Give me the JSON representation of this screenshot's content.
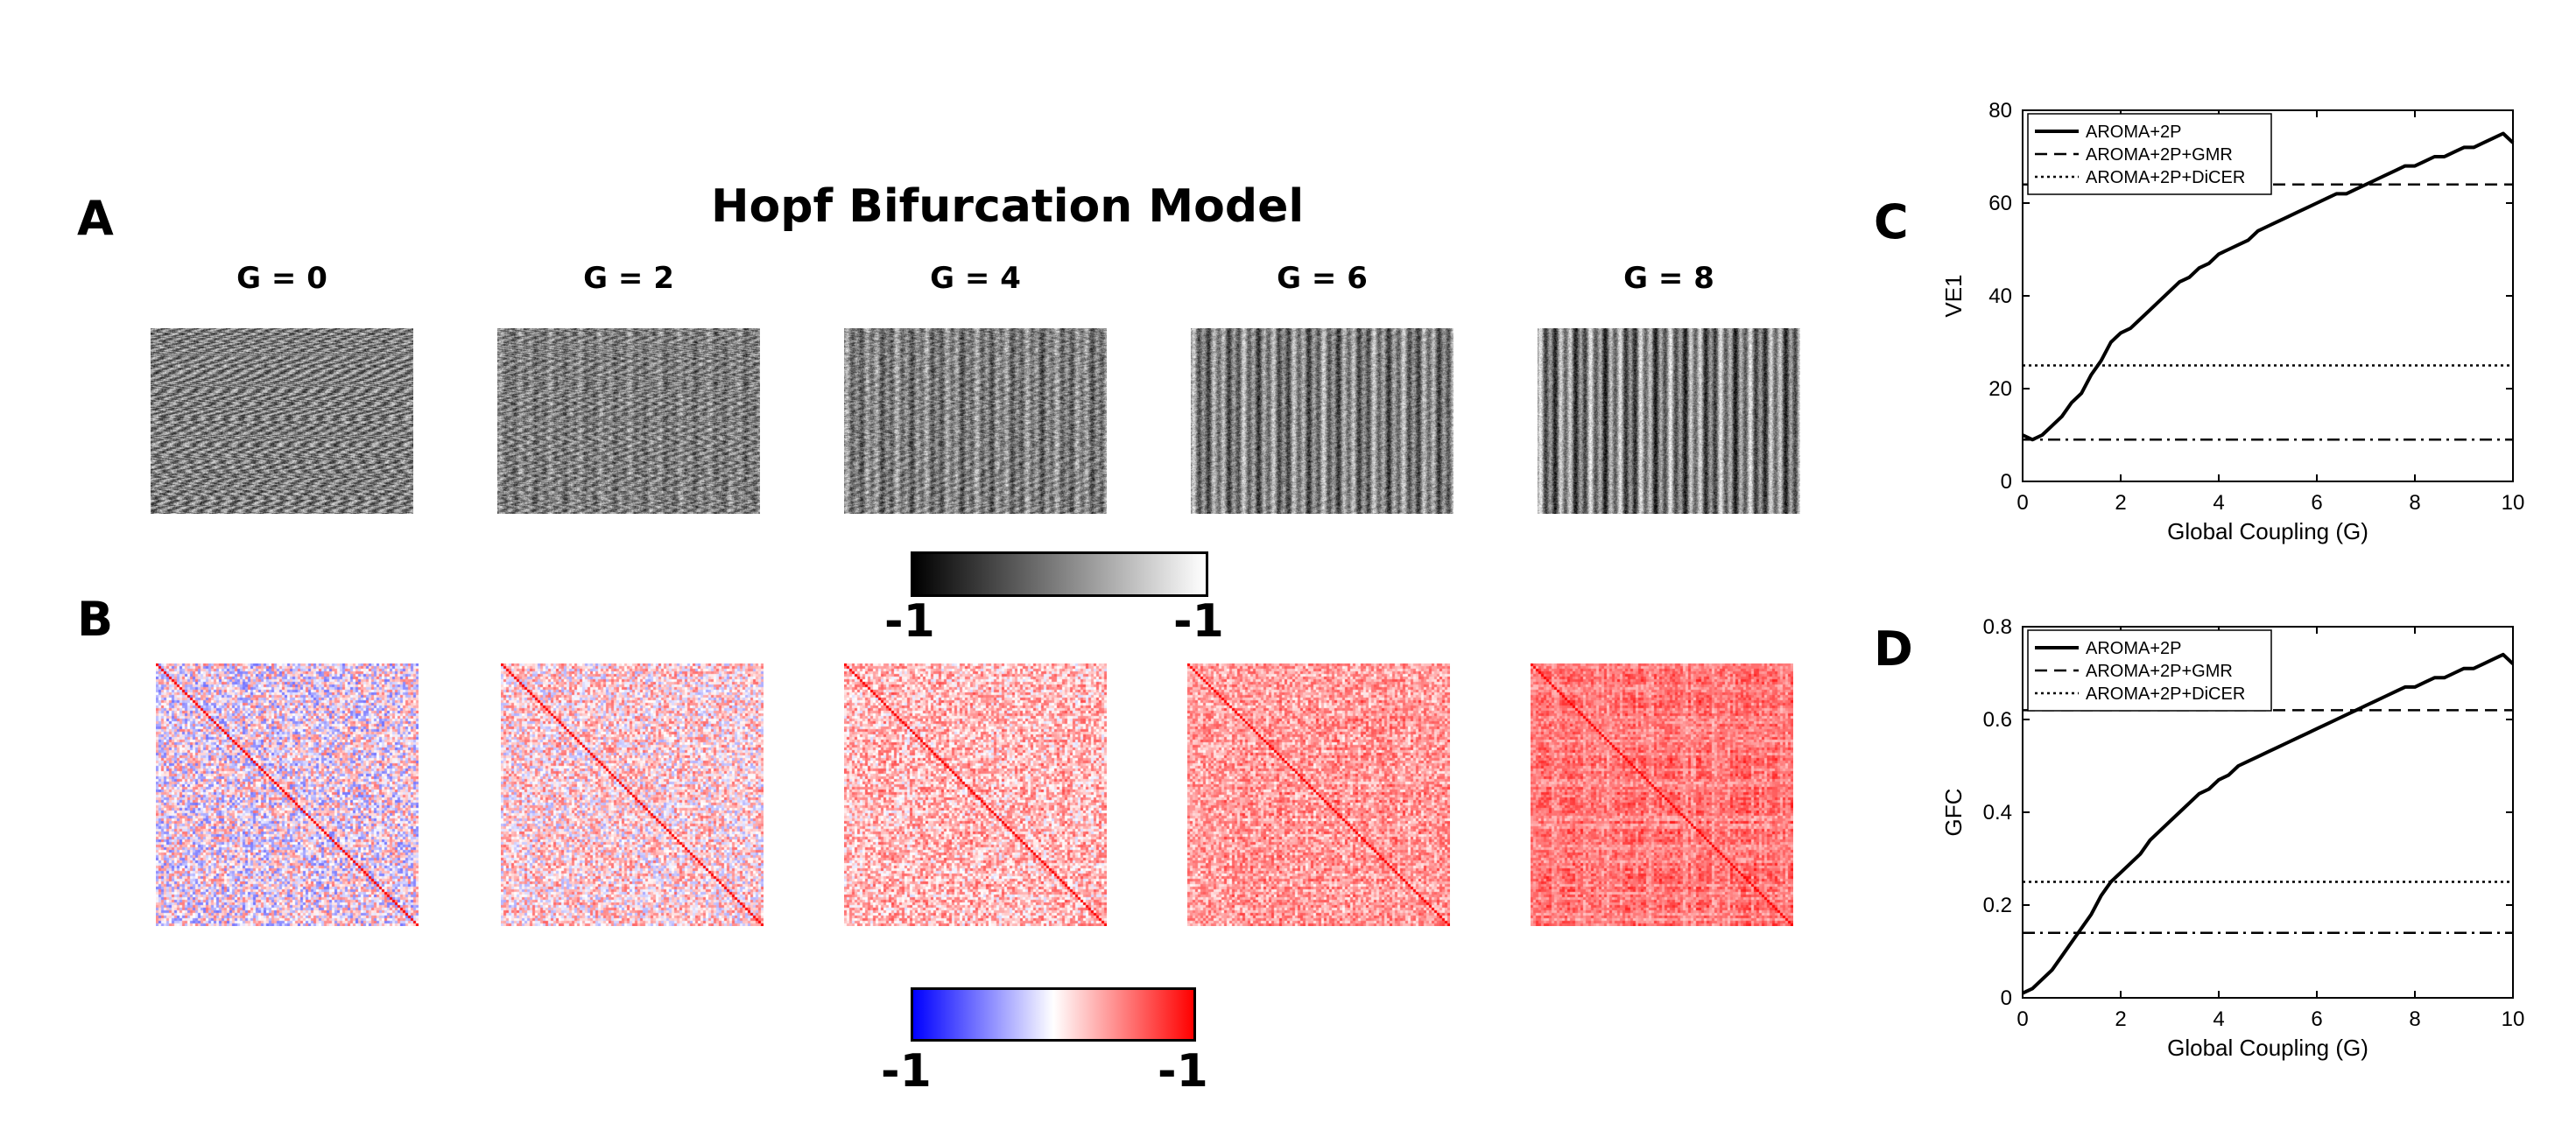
{
  "panel_letters": {
    "a": "A",
    "b": "B",
    "c": "C",
    "d": "D"
  },
  "title": "Hopf Bifurcation Model",
  "g_labels": [
    "G = 0",
    "G = 2",
    "G = 4",
    "G = 6",
    "G = 8"
  ],
  "colorbar_gray": {
    "min_label": "-1",
    "max_label": "-1",
    "colors": [
      "#000000",
      "#ffffff"
    ]
  },
  "colorbar_rwb": {
    "min_label": "-1",
    "max_label": "-1",
    "colors": [
      "#0000ff",
      "#ffffff",
      "#ff0000"
    ]
  },
  "chart_data": [
    {
      "type": "line",
      "panel": "C",
      "xlabel": "Global Coupling (G)",
      "ylabel": "VE1",
      "xlim": [
        0,
        10
      ],
      "ylim": [
        0,
        80
      ],
      "xticks": [
        0,
        2,
        4,
        6,
        8,
        10
      ],
      "yticks": [
        0,
        20,
        40,
        60,
        80
      ],
      "legend_position": "top-left",
      "series": [
        {
          "name": "AROMA+2P",
          "style": "solid",
          "x": [
            0,
            0.2,
            0.4,
            0.6,
            0.8,
            1.0,
            1.2,
            1.4,
            1.6,
            1.8,
            2.0,
            2.2,
            2.4,
            2.6,
            2.8,
            3.0,
            3.2,
            3.4,
            3.6,
            3.8,
            4.0,
            4.2,
            4.4,
            4.6,
            4.8,
            5.0,
            5.2,
            5.4,
            5.6,
            5.8,
            6.0,
            6.2,
            6.4,
            6.6,
            6.8,
            7.0,
            7.2,
            7.4,
            7.6,
            7.8,
            8.0,
            8.2,
            8.4,
            8.6,
            8.8,
            9.0,
            9.2,
            9.4,
            9.6,
            9.8,
            10.0
          ],
          "y": [
            10,
            9,
            10,
            12,
            14,
            17,
            19,
            23,
            26,
            30,
            32,
            33,
            35,
            37,
            39,
            41,
            43,
            44,
            46,
            47,
            49,
            50,
            51,
            52,
            54,
            55,
            56,
            57,
            58,
            59,
            60,
            61,
            62,
            62,
            63,
            64,
            65,
            66,
            67,
            68,
            68,
            69,
            70,
            70,
            71,
            72,
            72,
            73,
            74,
            75,
            73
          ]
        },
        {
          "name": "AROMA+2P+GMR",
          "style": "dashed",
          "x": [
            0,
            10
          ],
          "y": [
            64,
            64
          ]
        },
        {
          "name": "AROMA+2P+DiCER",
          "style": "dotted",
          "x": [
            0,
            10
          ],
          "y": [
            25,
            25
          ]
        },
        {
          "style": "dashdot",
          "x": [
            0,
            10
          ],
          "y": [
            9,
            9
          ]
        }
      ]
    },
    {
      "type": "line",
      "panel": "D",
      "xlabel": "Global Coupling (G)",
      "ylabel": "GFC",
      "xlim": [
        0,
        10
      ],
      "ylim": [
        0,
        0.8
      ],
      "xticks": [
        0,
        2,
        4,
        6,
        8,
        10
      ],
      "yticks": [
        0,
        0.2,
        0.4,
        0.6,
        0.8
      ],
      "legend_position": "top-left",
      "series": [
        {
          "name": "AROMA+2P",
          "style": "solid",
          "x": [
            0,
            0.2,
            0.4,
            0.6,
            0.8,
            1.0,
            1.2,
            1.4,
            1.6,
            1.8,
            2.0,
            2.2,
            2.4,
            2.6,
            2.8,
            3.0,
            3.2,
            3.4,
            3.6,
            3.8,
            4.0,
            4.2,
            4.4,
            4.6,
            4.8,
            5.0,
            5.2,
            5.4,
            5.6,
            5.8,
            6.0,
            6.2,
            6.4,
            6.6,
            6.8,
            7.0,
            7.2,
            7.4,
            7.6,
            7.8,
            8.0,
            8.2,
            8.4,
            8.6,
            8.8,
            9.0,
            9.2,
            9.4,
            9.6,
            9.8,
            10.0
          ],
          "y": [
            0.01,
            0.02,
            0.04,
            0.06,
            0.09,
            0.12,
            0.15,
            0.18,
            0.22,
            0.25,
            0.27,
            0.29,
            0.31,
            0.34,
            0.36,
            0.38,
            0.4,
            0.42,
            0.44,
            0.45,
            0.47,
            0.48,
            0.5,
            0.51,
            0.52,
            0.53,
            0.54,
            0.55,
            0.56,
            0.57,
            0.58,
            0.59,
            0.6,
            0.61,
            0.62,
            0.63,
            0.64,
            0.65,
            0.66,
            0.67,
            0.67,
            0.68,
            0.69,
            0.69,
            0.7,
            0.71,
            0.71,
            0.72,
            0.73,
            0.74,
            0.72
          ]
        },
        {
          "name": "AROMA+2P+GMR",
          "style": "dashed",
          "x": [
            0,
            10
          ],
          "y": [
            0.62,
            0.62
          ]
        },
        {
          "name": "AROMA+2P+DiCER",
          "style": "dotted",
          "x": [
            0,
            10
          ],
          "y": [
            0.25,
            0.25
          ]
        },
        {
          "style": "dashdot",
          "x": [
            0,
            10
          ],
          "y": [
            0.14,
            0.14
          ]
        }
      ]
    }
  ]
}
